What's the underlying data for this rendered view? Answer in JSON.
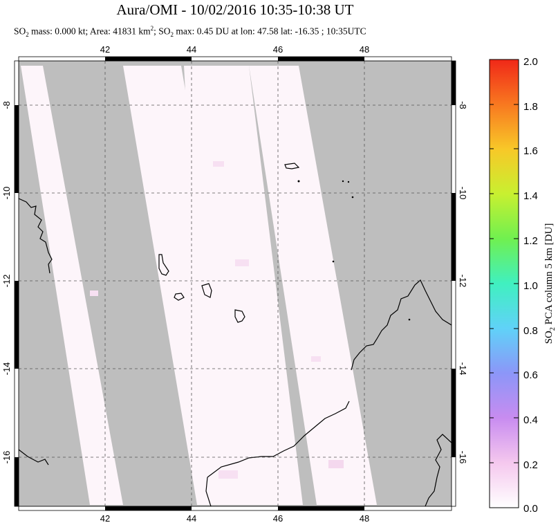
{
  "title": "Aura/OMI - 10/02/2016 10:35-10:38 UT",
  "subtitle": {
    "prefix": "SO",
    "sub": "2",
    "text1": " mass: 0.000 kt; Area: 41831 km",
    "sup": "2",
    "text2": "; SO",
    "sub2": "2",
    "text3": " max: 0.45 DU at lon: 47.58 lat: -16.35 ; 10:35UTC"
  },
  "map": {
    "lon_ticks": [
      "42",
      "44",
      "46",
      "48"
    ],
    "lat_ticks": [
      "-8",
      "-10",
      "-12",
      "-14",
      "-16"
    ],
    "background_color": "#bebebe",
    "swath_color": "#fdf5fa"
  },
  "colorbar": {
    "label_prefix": "SO",
    "label_sub": "2",
    "label_rest": " PCA column 5 km [DU]",
    "ticks": [
      "2.0",
      "1.8",
      "1.6",
      "1.4",
      "1.2",
      "1.0",
      "0.8",
      "0.6",
      "0.4",
      "0.2",
      "0.0"
    ],
    "colors": [
      "#ffffff",
      "#f5c8ee",
      "#c88cf0",
      "#8c96f8",
      "#60d2f8",
      "#40f0c0",
      "#70f050",
      "#c8f030",
      "#f8c828",
      "#f87820",
      "#f02818"
    ]
  }
}
